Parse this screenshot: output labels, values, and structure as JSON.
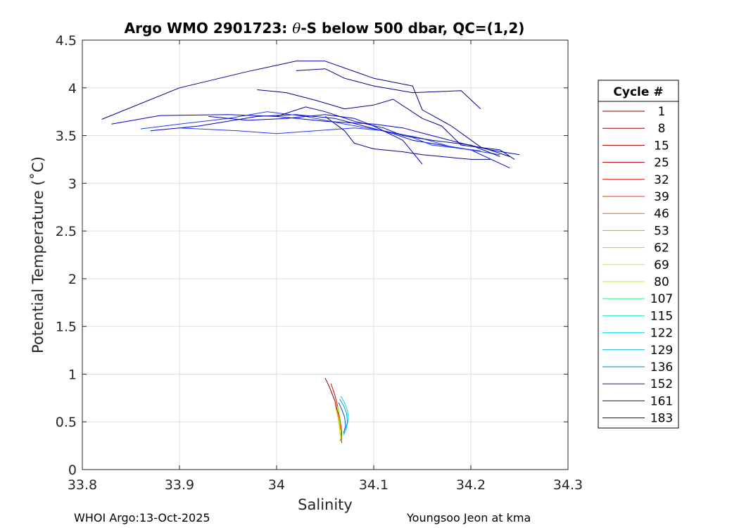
{
  "footer": {
    "left": "WHOI Argo:13-Oct-2025",
    "right": "Youngsoo Jeon at kma"
  },
  "chart_data": {
    "type": "line",
    "title_prefix": "Argo WMO 2901723: ",
    "title_theta": "θ",
    "title_suffix": "-S below 500 dbar,  QC=(1,2)",
    "xlabel": "Salinity",
    "ylabel": "Potential Temperature (˚C)",
    "xlim": [
      33.8,
      34.3
    ],
    "ylim": [
      0,
      4.5
    ],
    "x_ticks": [
      33.8,
      33.9,
      34,
      34.1,
      34.2,
      34.3
    ],
    "x_tick_labels": [
      "33.8",
      "33.9",
      "34",
      "34.1",
      "34.2",
      "34.3"
    ],
    "y_ticks": [
      0,
      0.5,
      1,
      1.5,
      2,
      2.5,
      3,
      3.5,
      4,
      4.5
    ],
    "y_tick_labels": [
      "0",
      "0.5",
      "1",
      "1.5",
      "2",
      "2.5",
      "3",
      "3.5",
      "4",
      "4.5"
    ],
    "grid": true,
    "legend_title": "Cycle #",
    "legend_position": "right",
    "legend": [
      {
        "label": "1",
        "color": "#800000"
      },
      {
        "label": "8",
        "color": "#8c0000"
      },
      {
        "label": "15",
        "color": "#a00000"
      },
      {
        "label": "25",
        "color": "#c40000"
      },
      {
        "label": "32",
        "color": "#dc1400"
      },
      {
        "label": "39",
        "color": "#e63c00"
      },
      {
        "label": "46",
        "color": "#f06400"
      },
      {
        "label": "53",
        "color": "#ff8c00"
      },
      {
        "label": "62",
        "color": "#ffb400"
      },
      {
        "label": "69",
        "color": "#e6e600"
      },
      {
        "label": "80",
        "color": "#b4f03c"
      },
      {
        "label": "107",
        "color": "#3cf08c"
      },
      {
        "label": "115",
        "color": "#1ee6c8"
      },
      {
        "label": "122",
        "color": "#00dcf0"
      },
      {
        "label": "129",
        "color": "#00b4e6"
      },
      {
        "label": "136",
        "color": "#0082c8"
      },
      {
        "label": "152",
        "color": "#0028a0"
      },
      {
        "label": "161",
        "color": "#001c8c"
      },
      {
        "label": "183",
        "color": "#000078"
      }
    ],
    "series": [
      {
        "color": "#8b0000",
        "x": [
          34.05,
          34.055,
          34.06,
          34.063,
          34.066,
          34.066
        ],
        "y": [
          0.96,
          0.85,
          0.72,
          0.6,
          0.45,
          0.3
        ]
      },
      {
        "color": "#e60000",
        "x": [
          34.056,
          34.06,
          34.063,
          34.065,
          34.067,
          34.067
        ],
        "y": [
          0.9,
          0.78,
          0.66,
          0.54,
          0.4,
          0.28
        ]
      },
      {
        "color": "#ff8c00",
        "x": [
          34.06,
          34.062,
          34.064,
          34.066,
          34.067
        ],
        "y": [
          0.7,
          0.6,
          0.5,
          0.4,
          0.3
        ]
      },
      {
        "color": "#e6e600",
        "x": [
          34.062,
          34.063,
          34.064,
          34.065,
          34.066,
          34.065
        ],
        "y": [
          0.62,
          0.55,
          0.48,
          0.41,
          0.33,
          0.3
        ]
      },
      {
        "color": "#7cfc00",
        "x": [
          34.063,
          34.064,
          34.065,
          34.066,
          34.066
        ],
        "y": [
          0.66,
          0.58,
          0.5,
          0.42,
          0.34
        ]
      },
      {
        "color": "#00dcdc",
        "x": [
          34.066,
          34.07,
          34.073,
          34.074,
          34.072,
          34.069
        ],
        "y": [
          0.77,
          0.7,
          0.62,
          0.53,
          0.44,
          0.36
        ]
      },
      {
        "color": "#00a0e6",
        "x": [
          34.065,
          34.069,
          34.072,
          34.073,
          34.071
        ],
        "y": [
          0.74,
          0.67,
          0.59,
          0.5,
          0.41
        ]
      },
      {
        "color": "#0050c8",
        "x": [
          34.064,
          34.067,
          34.07,
          34.071,
          34.069
        ],
        "y": [
          0.7,
          0.63,
          0.55,
          0.46,
          0.38
        ]
      },
      {
        "color": "#00008b",
        "x": [
          33.82,
          33.9,
          33.97,
          34.02,
          34.05,
          34.1,
          34.14,
          34.15,
          34.18,
          34.21,
          34.24
        ],
        "y": [
          3.67,
          4.0,
          4.17,
          4.28,
          4.28,
          4.1,
          4.02,
          3.77,
          3.6,
          3.38,
          3.28
        ]
      },
      {
        "color": "#00008b",
        "x": [
          34.02,
          34.05,
          34.07,
          34.1,
          34.14,
          34.19,
          34.21
        ],
        "y": [
          4.18,
          4.2,
          4.1,
          4.02,
          3.95,
          3.97,
          3.78
        ]
      },
      {
        "color": "#00008b",
        "x": [
          33.98,
          34.01,
          34.04,
          34.07,
          34.1,
          34.12,
          34.15,
          34.17,
          34.19,
          34.23,
          34.245
        ],
        "y": [
          3.98,
          3.95,
          3.87,
          3.78,
          3.82,
          3.88,
          3.68,
          3.6,
          3.4,
          3.35,
          3.25
        ]
      },
      {
        "color": "#0000cd",
        "x": [
          33.83,
          33.88,
          33.95,
          34.0,
          34.05,
          34.1,
          34.13,
          34.16,
          34.19,
          34.22,
          34.25
        ],
        "y": [
          3.62,
          3.71,
          3.72,
          3.7,
          3.65,
          3.62,
          3.58,
          3.5,
          3.42,
          3.35,
          3.3
        ]
      },
      {
        "color": "#0000cd",
        "x": [
          33.87,
          33.92,
          33.98,
          34.02,
          34.06,
          34.09,
          34.12,
          34.14,
          34.17,
          34.2,
          34.24
        ],
        "y": [
          3.55,
          3.6,
          3.7,
          3.72,
          3.68,
          3.6,
          3.52,
          3.45,
          3.4,
          3.35,
          3.16
        ]
      },
      {
        "color": "#1e3cff",
        "x": [
          33.86,
          33.9,
          33.95,
          33.99,
          34.03,
          34.07,
          34.11,
          34.15,
          34.18,
          34.23
        ],
        "y": [
          3.57,
          3.62,
          3.68,
          3.75,
          3.7,
          3.62,
          3.55,
          3.47,
          3.38,
          3.3
        ]
      },
      {
        "color": "#1e3cff",
        "x": [
          33.9,
          33.96,
          34.0,
          34.04,
          34.08,
          34.11,
          34.14,
          34.16,
          34.21
        ],
        "y": [
          3.58,
          3.55,
          3.52,
          3.55,
          3.58,
          3.55,
          3.48,
          3.4,
          3.34
        ]
      },
      {
        "color": "#0a0a96",
        "x": [
          34.0,
          34.03,
          34.05,
          34.08,
          34.11,
          34.13,
          34.16,
          34.2,
          34.23
        ],
        "y": [
          3.7,
          3.8,
          3.75,
          3.65,
          3.58,
          3.5,
          3.45,
          3.4,
          3.28
        ]
      },
      {
        "color": "#0000cd",
        "x": [
          33.93,
          33.97,
          34.01,
          34.05,
          34.08,
          34.1,
          34.13,
          34.15
        ],
        "y": [
          3.7,
          3.66,
          3.68,
          3.72,
          3.68,
          3.6,
          3.45,
          3.2
        ]
      },
      {
        "color": "#00008b",
        "x": [
          34.05,
          34.07,
          34.08,
          34.1,
          34.13,
          34.15,
          34.17,
          34.2,
          34.22
        ],
        "y": [
          3.7,
          3.55,
          3.42,
          3.36,
          3.33,
          3.3,
          3.28,
          3.25,
          3.25
        ]
      }
    ]
  }
}
